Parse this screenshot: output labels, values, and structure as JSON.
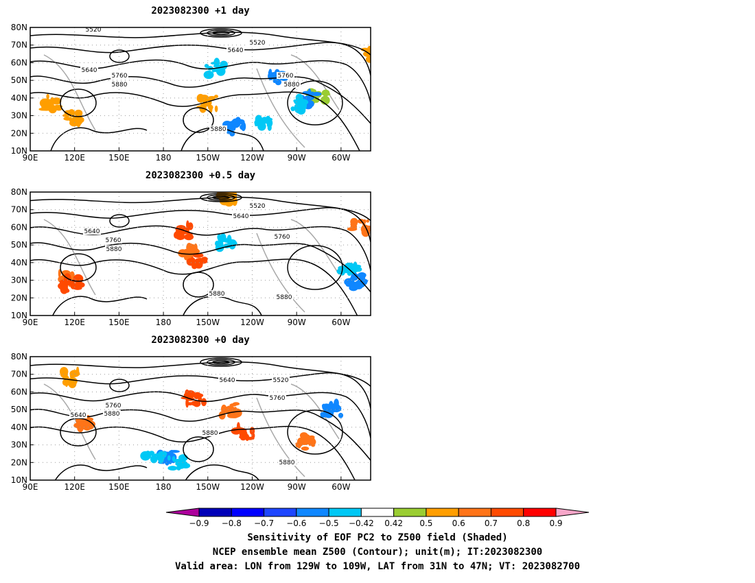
{
  "panels": [
    {
      "title": "2023082300  +1 day",
      "contour_labels": [
        "5520",
        "5520",
        "5640",
        "5640",
        "5760",
        "5760",
        "5880",
        "5880",
        "5880"
      ]
    },
    {
      "title": "2023082300  +0.5 day",
      "contour_labels": [
        "5520",
        "5640",
        "5640",
        "5760",
        "5760",
        "5880",
        "5880",
        "5880"
      ]
    },
    {
      "title": "2023082300  +0 day",
      "contour_labels": [
        "5640",
        "5520",
        "5760",
        "5760",
        "5640",
        "5880",
        "5880",
        "5880"
      ]
    }
  ],
  "map": {
    "lon_ticks": [
      "90E",
      "120E",
      "150E",
      "180",
      "150W",
      "120W",
      "90W",
      "60W"
    ],
    "lon_values": [
      90,
      120,
      150,
      180,
      210,
      240,
      270,
      300
    ],
    "lon_range": [
      90,
      320
    ],
    "lat_ticks": [
      "80N",
      "70N",
      "60N",
      "50N",
      "40N",
      "30N",
      "20N",
      "10N"
    ],
    "lat_values": [
      80,
      70,
      60,
      50,
      40,
      30,
      20,
      10
    ],
    "lat_range": [
      10,
      80
    ]
  },
  "colorbar": {
    "tick_labels": [
      "−0.9",
      "−0.8",
      "−0.7",
      "−0.6",
      "−0.5",
      "−0.42",
      "0.42",
      "0.5",
      "0.6",
      "0.7",
      "0.8",
      "0.9"
    ],
    "colors": [
      "#ad009c",
      "#0000b8",
      "#0000ff",
      "#1e46ff",
      "#0f87ff",
      "#00c8f5",
      "#ffffff",
      "#9acd32",
      "#ff9e00",
      "#ff7418",
      "#ff4a00",
      "#ff0000",
      "#f7a6c9"
    ]
  },
  "captions": {
    "line1": "Sensitivity of EOF PC2 to Z500 field (Shaded)",
    "line2": "NCEP ensemble mean Z500 (Contour); unit(m); IT:2023082300",
    "line3": "Valid area: LON from 129W to 109W, LAT from 31N to 47N; VT: 2023082700"
  }
}
